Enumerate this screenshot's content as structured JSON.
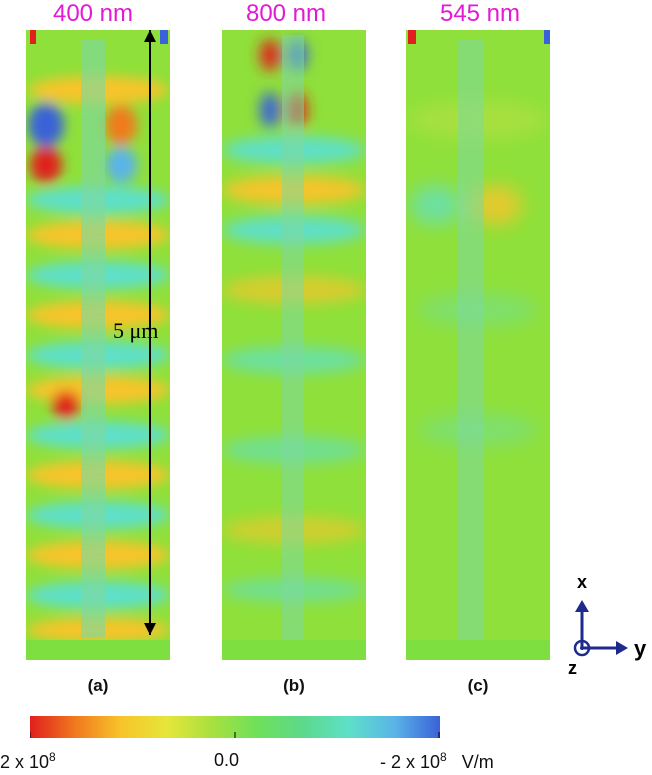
{
  "panels": [
    {
      "wavelength": "400 nm",
      "label": "(a)"
    },
    {
      "wavelength": "800 nm",
      "label": "(b)"
    },
    {
      "wavelength": "545 nm",
      "label": "(c)"
    }
  ],
  "scale_bar": {
    "text": "5 μm"
  },
  "colorbar": {
    "left_label": "2 x 10",
    "left_exp": "8",
    "center_label": "0.0",
    "right_label": "- 2 x 10",
    "right_exp": "8",
    "unit": "V/m",
    "colors": [
      "#e0201e",
      "#f07a1e",
      "#f7c42a",
      "#e6e63a",
      "#a8e040",
      "#6ee05a",
      "#5cd98c",
      "#5ee0c8",
      "#5ab4e8",
      "#3a62d8"
    ]
  },
  "axes": {
    "x": "x",
    "y": "y",
    "z": "z"
  }
}
